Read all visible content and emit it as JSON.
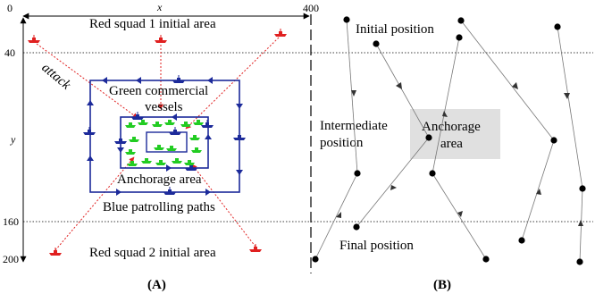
{
  "panel_a": {
    "panel_label": "(A)",
    "x_axis": {
      "symbol": "x",
      "tick_start": "0",
      "tick_end": "400"
    },
    "y_axis": {
      "symbol": "y",
      "tick_40": "40",
      "tick_160": "160",
      "tick_200": "200"
    },
    "labels": {
      "red_squad_1": "Red squad 1 initial area",
      "red_squad_2": "Red squad 2 initial area",
      "attack": "attack",
      "green_line1": "Green commercial",
      "green_line2": "vessels",
      "anchorage": "Anchorage area",
      "blue_paths": "Blue patrolling paths"
    },
    "colors": {
      "red": "#e02020",
      "blue": "#1c2a9a",
      "green": "#22cc22",
      "line": "#000000"
    }
  },
  "panel_b": {
    "panel_label": "(B)",
    "labels": {
      "initial_position": "Initial position",
      "intermediate_line1": "Intermediate",
      "intermediate_line2": "position",
      "anchorage_line1": "Anchorage",
      "anchorage_line2": "area",
      "final_position": "Final position"
    },
    "colors": {
      "anchorage_fill": "#e0e0e0",
      "dot": "#000000",
      "arrow": "#777777"
    }
  }
}
